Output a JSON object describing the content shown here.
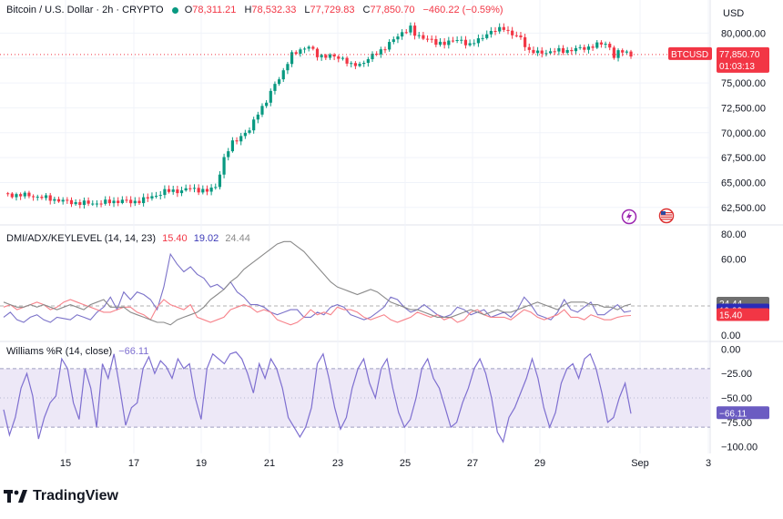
{
  "header": {
    "symbol": "Bitcoin / U.S. Dollar · 2h · CRYPTO",
    "o_label": "O",
    "o": "78,311.21",
    "h_label": "H",
    "h": "78,532.33",
    "l_label": "L",
    "l": "77,729.83",
    "c_label": "C",
    "c": "77,850.70",
    "change": "−460.22 (−0.59%)"
  },
  "dmi_legend": {
    "title": "DMI/ADX/KEYLEVEL (14, 14, 23)",
    "v1": "15.40",
    "v2": "19.02",
    "v3": "24.44"
  },
  "wr_legend": {
    "title": "Williams %R (14, close)",
    "v": "−66.11"
  },
  "branding": "TradingView",
  "colors": {
    "up": "#089981",
    "down": "#f23645",
    "di_plus": "#7b72c9",
    "di_minus": "#f7828a",
    "adx": "#8a8a8a",
    "wr": "#7e6fd0",
    "wr_fill": "#ede8f7"
  },
  "icons": [
    "lightning-icon",
    "us-flag-icon"
  ],
  "chart_data": [
    {
      "type": "candlestick",
      "title": "Bitcoin / U.S. Dollar · 2h · CRYPTO",
      "currency_label": "USD",
      "x_labels": [
        "15",
        "17",
        "19",
        "21",
        "23",
        "25",
        "27",
        "29",
        "Sep",
        "3"
      ],
      "y_ticks": [
        "80,000.00",
        "77,500.00",
        "75,000.00",
        "72,500.00",
        "70,000.00",
        "67,500.00",
        "65,000.00",
        "62,500.00"
      ],
      "y_tick_values": [
        80000,
        77500,
        75000,
        72500,
        70000,
        67500,
        65000,
        62500
      ],
      "ylim": [
        61200,
        81500
      ],
      "last_label": "BTCUSD",
      "last_price": "77,850.70",
      "last_price_value": 77850.7,
      "countdown": "01:03:13",
      "close_path": [
        [
          0,
          63800
        ],
        [
          6,
          63700
        ],
        [
          12,
          63300
        ],
        [
          16,
          63000
        ],
        [
          20,
          62900
        ],
        [
          24,
          63000
        ],
        [
          28,
          63200
        ],
        [
          30,
          63000
        ],
        [
          34,
          63400
        ],
        [
          38,
          64100
        ],
        [
          42,
          64200
        ],
        [
          44,
          64400
        ],
        [
          46,
          64300
        ],
        [
          48,
          64100
        ],
        [
          50,
          64600
        ],
        [
          52,
          67400
        ],
        [
          54,
          69000
        ],
        [
          56,
          69700
        ],
        [
          58,
          70200
        ],
        [
          60,
          72100
        ],
        [
          62,
          73100
        ],
        [
          64,
          74900
        ],
        [
          66,
          76200
        ],
        [
          68,
          77800
        ],
        [
          70,
          78400
        ],
        [
          72,
          78600
        ],
        [
          74,
          77800
        ],
        [
          76,
          77700
        ],
        [
          80,
          77500
        ],
        [
          82,
          76700
        ],
        [
          84,
          76900
        ],
        [
          86,
          77400
        ],
        [
          88,
          78000
        ],
        [
          90,
          78600
        ],
        [
          92,
          79300
        ],
        [
          94,
          80100
        ],
        [
          96,
          80500
        ],
        [
          97,
          79800
        ],
        [
          100,
          79500
        ],
        [
          102,
          78900
        ],
        [
          104,
          79100
        ],
        [
          106,
          79200
        ],
        [
          108,
          79300
        ],
        [
          110,
          78800
        ],
        [
          112,
          79300
        ],
        [
          114,
          80000
        ],
        [
          116,
          80200
        ],
        [
          118,
          80600
        ],
        [
          120,
          79800
        ],
        [
          122,
          79500
        ],
        [
          124,
          78200
        ],
        [
          126,
          78000
        ],
        [
          130,
          78200
        ],
        [
          134,
          78300
        ],
        [
          138,
          78600
        ],
        [
          142,
          79000
        ],
        [
          143,
          78600
        ],
        [
          144,
          77600
        ],
        [
          145,
          78000
        ],
        [
          146,
          78200
        ],
        [
          147,
          78100
        ],
        [
          148,
          77850
        ]
      ],
      "highs": [
        63900,
        63800,
        63400,
        63200,
        63000,
        63100,
        63300,
        63200,
        63600,
        64400,
        64500,
        64700,
        64500,
        64300,
        65000,
        68500,
        69500,
        70300,
        70800,
        72800,
        73500,
        75500,
        77000,
        78500,
        79200,
        79400,
        78500,
        78200,
        78000,
        77300,
        77300,
        77800,
        78400,
        79000,
        79700,
        80700,
        81600,
        80500,
        80100,
        79500,
        79600,
        79700,
        79800,
        79300,
        79700,
        80400,
        80700,
        81300,
        80400,
        80100,
        79000,
        78400,
        78500,
        78600,
        78900,
        79400,
        79100,
        78300,
        78400,
        78600,
        78500,
        78300
      ]
    },
    {
      "type": "line",
      "title": "DMI/ADX/KEYLEVEL (14, 14, 23)",
      "y_ticks": [
        "80.00",
        "60.00",
        "23.00",
        "0.00"
      ],
      "y_tick_values": [
        80,
        60,
        23,
        0
      ],
      "ylim": [
        -3,
        85
      ],
      "key_level": 23,
      "last_values": {
        "adx": 24.44,
        "di_plus": 19.02,
        "di_minus": 15.4
      },
      "series": [
        {
          "name": "+DI",
          "color": "#7b72c9",
          "values": [
            14,
            18,
            12,
            10,
            14,
            16,
            12,
            10,
            14,
            13,
            12,
            16,
            14,
            12,
            18,
            22,
            30,
            20,
            34,
            28,
            34,
            32,
            28,
            20,
            38,
            64,
            56,
            50,
            54,
            48,
            45,
            38,
            40,
            36,
            42,
            34,
            30,
            24,
            24,
            22,
            18,
            16,
            18,
            20,
            20,
            14,
            14,
            18,
            16,
            22,
            24,
            22,
            16,
            14,
            12,
            14,
            18,
            22,
            30,
            28,
            22,
            18,
            20,
            24,
            20,
            16,
            14,
            16,
            22,
            20,
            16,
            18,
            20,
            14,
            16,
            18,
            14,
            20,
            30,
            24,
            16,
            14,
            12,
            18,
            28,
            20,
            18,
            22,
            26,
            16,
            16,
            20,
            24,
            18,
            19.02
          ]
        },
        {
          "name": "−DI",
          "color": "#f7828a",
          "values": [
            22,
            24,
            20,
            22,
            24,
            26,
            24,
            20,
            22,
            26,
            28,
            26,
            24,
            22,
            20,
            18,
            18,
            20,
            22,
            22,
            18,
            16,
            12,
            22,
            28,
            24,
            22,
            20,
            24,
            14,
            12,
            10,
            12,
            14,
            20,
            22,
            24,
            22,
            18,
            20,
            18,
            12,
            10,
            8,
            10,
            14,
            20,
            16,
            18,
            16,
            22,
            20,
            20,
            18,
            14,
            12,
            14,
            16,
            12,
            10,
            12,
            14,
            18,
            16,
            14,
            16,
            12,
            14,
            10,
            12,
            18,
            20,
            16,
            14,
            14,
            14,
            12,
            16,
            20,
            18,
            14,
            12,
            14,
            16,
            20,
            14,
            14,
            12,
            16,
            14,
            12,
            12,
            14,
            15,
            15.4
          ]
        },
        {
          "name": "ADX",
          "color": "#8a8a8a",
          "values": [
            26,
            24,
            22,
            22,
            24,
            22,
            24,
            22,
            20,
            22,
            24,
            22,
            20,
            24,
            26,
            28,
            22,
            22,
            22,
            18,
            16,
            14,
            12,
            10,
            10,
            8,
            12,
            14,
            16,
            18,
            22,
            28,
            32,
            36,
            42,
            46,
            52,
            56,
            60,
            64,
            68,
            72,
            74,
            74,
            70,
            66,
            60,
            54,
            48,
            42,
            38,
            36,
            34,
            32,
            34,
            36,
            34,
            30,
            26,
            24,
            22,
            20,
            20,
            18,
            16,
            14,
            14,
            14,
            16,
            18,
            20,
            18,
            16,
            18,
            20,
            18,
            18,
            20,
            22,
            24,
            26,
            24,
            22,
            20,
            24,
            26,
            26,
            26,
            24,
            24,
            22,
            22,
            20,
            23,
            24.44
          ]
        }
      ]
    },
    {
      "type": "area",
      "title": "Williams %R (14, close)",
      "y_ticks": [
        "0.00",
        "−25.00",
        "−50.00",
        "−75.00",
        "−100.00"
      ],
      "y_tick_values": [
        0,
        -25,
        -50,
        -75,
        -100
      ],
      "ylim": [
        -105,
        5
      ],
      "band": [
        -80,
        -20
      ],
      "last_value": -66.11,
      "series": [
        {
          "name": "%R",
          "color": "#7e6fd0",
          "values": [
            -62,
            -88,
            -70,
            -40,
            -25,
            -48,
            -92,
            -70,
            -55,
            -48,
            -10,
            -20,
            -55,
            -72,
            -20,
            -40,
            -80,
            -15,
            -30,
            -5,
            -40,
            -78,
            -60,
            -55,
            -20,
            -8,
            -25,
            -12,
            -18,
            -30,
            -10,
            -20,
            -15,
            -50,
            -72,
            -20,
            -5,
            -10,
            -15,
            -5,
            -3,
            -10,
            -25,
            -45,
            -15,
            -30,
            -10,
            -20,
            -40,
            -70,
            -80,
            -90,
            -80,
            -60,
            -15,
            -5,
            -30,
            -60,
            -82,
            -70,
            -40,
            -20,
            -10,
            -35,
            -50,
            -20,
            -10,
            -40,
            -65,
            -80,
            -72,
            -50,
            -20,
            -10,
            -30,
            -40,
            -60,
            -80,
            -75,
            -55,
            -40,
            -20,
            -10,
            -25,
            -50,
            -85,
            -95,
            -70,
            -60,
            -45,
            -30,
            -10,
            -30,
            -60,
            -80,
            -65,
            -35,
            -20,
            -15,
            -30,
            -10,
            -5,
            -20,
            -45,
            -75,
            -70,
            -50,
            -35,
            -66.11
          ]
        }
      ]
    }
  ]
}
